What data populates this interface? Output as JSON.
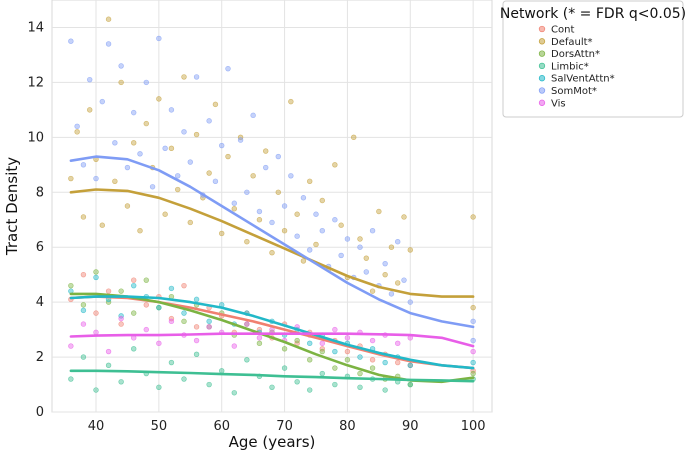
{
  "chart_data": {
    "type": "scatter",
    "xlabel": "Age (years)",
    "ylabel": "Tract Density",
    "xlim": [
      33,
      103
    ],
    "ylim": [
      0,
      15
    ],
    "xticks": [
      "40",
      "50",
      "60",
      "70",
      "80",
      "90",
      "100"
    ],
    "yticks": [
      "0",
      "2",
      "4",
      "6",
      "8",
      "10",
      "12",
      "14"
    ],
    "grid": true,
    "legend": {
      "title": "Network (* = FDR q<0.05)",
      "placement": "outside-right-top"
    },
    "series": [
      {
        "name": "Cont",
        "color": "#f08070",
        "fit_x": [
          36,
          40,
          45,
          50,
          55,
          60,
          65,
          70,
          75,
          80,
          85,
          90,
          95,
          100
        ],
        "fit_y": [
          4.15,
          4.2,
          4.15,
          4.0,
          3.8,
          3.55,
          3.3,
          3.0,
          2.7,
          2.4,
          2.1,
          1.85,
          1.7,
          1.6
        ],
        "points_x": [
          36,
          38,
          40,
          42,
          44,
          46,
          48,
          50,
          52,
          54,
          56,
          58,
          60,
          62,
          64,
          66,
          68,
          70,
          72,
          74,
          76,
          78,
          80,
          82,
          84,
          86,
          88,
          90,
          100
        ],
        "points_y": [
          4.1,
          5.0,
          3.6,
          4.4,
          3.2,
          4.8,
          3.9,
          4.2,
          3.4,
          4.6,
          3.1,
          3.8,
          3.5,
          2.9,
          3.6,
          3.0,
          2.7,
          3.2,
          2.5,
          2.9,
          2.3,
          2.6,
          2.2,
          2.4,
          1.9,
          2.1,
          1.8,
          1.7,
          1.5
        ]
      },
      {
        "name": "Default*",
        "color": "#c4a03a",
        "fit_x": [
          36,
          40,
          45,
          50,
          55,
          60,
          65,
          70,
          75,
          80,
          85,
          90,
          95,
          100
        ],
        "fit_y": [
          8.0,
          8.1,
          8.05,
          7.8,
          7.4,
          6.95,
          6.45,
          5.95,
          5.45,
          4.95,
          4.55,
          4.3,
          4.2,
          4.2
        ],
        "points_x": [
          36,
          37,
          38,
          39,
          40,
          41,
          42,
          43,
          44,
          45,
          46,
          47,
          48,
          49,
          50,
          51,
          52,
          53,
          54,
          55,
          56,
          57,
          58,
          59,
          60,
          61,
          62,
          63,
          64,
          65,
          66,
          67,
          68,
          69,
          70,
          71,
          72,
          73,
          74,
          75,
          76,
          77,
          78,
          79,
          80,
          81,
          82,
          83,
          84,
          85,
          86,
          87,
          88,
          89,
          90,
          100,
          100
        ],
        "points_y": [
          8.5,
          10.2,
          7.1,
          11.0,
          9.2,
          6.8,
          14.3,
          8.4,
          12.0,
          7.5,
          9.8,
          6.6,
          10.5,
          8.9,
          11.4,
          7.2,
          9.6,
          8.1,
          12.2,
          6.9,
          10.1,
          7.8,
          8.7,
          11.2,
          6.5,
          9.3,
          7.4,
          10.0,
          6.2,
          8.6,
          7.0,
          9.5,
          5.8,
          8.0,
          6.6,
          11.3,
          7.2,
          5.5,
          8.4,
          6.1,
          7.7,
          5.2,
          9.0,
          6.8,
          4.9,
          10.0,
          6.3,
          5.6,
          4.4,
          7.3,
          5.0,
          6.0,
          4.7,
          7.1,
          5.9,
          7.1,
          3.8
        ]
      },
      {
        "name": "DorsAttn*",
        "color": "#7cb342",
        "fit_x": [
          36,
          40,
          45,
          50,
          55,
          60,
          65,
          70,
          75,
          80,
          85,
          90,
          95,
          100
        ],
        "fit_y": [
          4.3,
          4.3,
          4.2,
          4.0,
          3.7,
          3.35,
          2.95,
          2.55,
          2.1,
          1.7,
          1.35,
          1.15,
          1.1,
          1.25
        ],
        "points_x": [
          36,
          38,
          40,
          42,
          44,
          46,
          48,
          50,
          52,
          54,
          56,
          58,
          60,
          62,
          64,
          66,
          68,
          70,
          72,
          74,
          76,
          78,
          80,
          82,
          84,
          86,
          88,
          90,
          100
        ],
        "points_y": [
          4.6,
          3.9,
          5.1,
          4.0,
          4.4,
          3.6,
          4.8,
          3.8,
          4.2,
          3.3,
          3.9,
          3.1,
          3.6,
          2.8,
          3.2,
          2.5,
          2.9,
          2.3,
          2.6,
          1.9,
          2.2,
          1.6,
          1.9,
          1.4,
          1.6,
          1.2,
          1.3,
          1.0,
          1.4
        ]
      },
      {
        "name": "Limbic*",
        "color": "#3ebf93",
        "fit_x": [
          36,
          40,
          45,
          50,
          55,
          60,
          65,
          70,
          75,
          80,
          85,
          90,
          95,
          100
        ],
        "fit_y": [
          1.5,
          1.5,
          1.48,
          1.45,
          1.42,
          1.38,
          1.35,
          1.3,
          1.27,
          1.23,
          1.2,
          1.17,
          1.15,
          1.12
        ],
        "points_x": [
          36,
          38,
          40,
          42,
          44,
          46,
          48,
          50,
          52,
          54,
          56,
          58,
          60,
          62,
          64,
          66,
          68,
          70,
          72,
          74,
          76,
          78,
          80,
          82,
          84,
          86,
          88,
          90,
          100
        ],
        "points_y": [
          1.2,
          2.0,
          0.8,
          1.7,
          1.1,
          2.3,
          1.4,
          0.9,
          1.8,
          1.2,
          2.1,
          1.0,
          1.5,
          0.7,
          1.9,
          1.3,
          0.9,
          1.6,
          1.1,
          0.8,
          1.4,
          1.0,
          1.3,
          0.9,
          1.2,
          0.8,
          1.1,
          1.0,
          1.2
        ]
      },
      {
        "name": "SalVentAttn*",
        "color": "#22b8c8",
        "fit_x": [
          36,
          40,
          45,
          50,
          55,
          60,
          65,
          70,
          75,
          80,
          85,
          90,
          95,
          100
        ],
        "fit_y": [
          4.15,
          4.2,
          4.2,
          4.15,
          4.0,
          3.8,
          3.5,
          3.15,
          2.8,
          2.45,
          2.15,
          1.9,
          1.7,
          1.6
        ],
        "points_x": [
          36,
          38,
          40,
          42,
          44,
          46,
          48,
          50,
          52,
          54,
          56,
          58,
          60,
          62,
          64,
          66,
          68,
          70,
          72,
          74,
          76,
          78,
          80,
          82,
          84,
          86,
          88,
          90,
          100
        ],
        "points_y": [
          4.4,
          3.7,
          4.9,
          4.1,
          3.5,
          4.6,
          4.2,
          3.8,
          4.5,
          3.6,
          4.1,
          3.3,
          3.9,
          3.2,
          3.6,
          2.9,
          3.3,
          2.8,
          3.0,
          2.5,
          2.8,
          2.2,
          2.5,
          2.0,
          2.3,
          1.8,
          2.0,
          1.7,
          1.8
        ]
      },
      {
        "name": "SomMot*",
        "color": "#7f9cf5",
        "fit_x": [
          36,
          40,
          45,
          50,
          55,
          60,
          65,
          70,
          75,
          80,
          85,
          90,
          95,
          100
        ],
        "fit_y": [
          9.15,
          9.3,
          9.2,
          8.8,
          8.2,
          7.5,
          6.8,
          6.1,
          5.4,
          4.7,
          4.1,
          3.6,
          3.3,
          3.1
        ],
        "points_x": [
          36,
          37,
          38,
          39,
          40,
          41,
          42,
          43,
          44,
          45,
          46,
          47,
          48,
          49,
          50,
          51,
          52,
          53,
          54,
          55,
          56,
          57,
          58,
          59,
          60,
          61,
          62,
          63,
          64,
          65,
          66,
          67,
          68,
          69,
          70,
          71,
          72,
          73,
          74,
          75,
          76,
          77,
          78,
          79,
          80,
          81,
          82,
          83,
          84,
          85,
          86,
          87,
          88,
          89,
          90,
          100,
          100
        ],
        "points_y": [
          13.5,
          10.4,
          9.0,
          12.1,
          8.5,
          11.3,
          13.4,
          9.8,
          12.6,
          8.9,
          10.9,
          9.4,
          12.0,
          8.2,
          13.6,
          9.6,
          11.0,
          8.6,
          10.2,
          9.1,
          12.2,
          7.9,
          10.6,
          8.4,
          9.7,
          12.5,
          7.6,
          9.9,
          8.0,
          10.8,
          7.3,
          8.9,
          6.9,
          9.3,
          7.5,
          8.6,
          6.4,
          7.8,
          5.9,
          7.2,
          6.6,
          5.3,
          7.0,
          5.7,
          6.3,
          4.9,
          6.0,
          5.1,
          6.6,
          4.6,
          5.4,
          4.3,
          6.2,
          4.8,
          4.0,
          3.3,
          2.6
        ]
      },
      {
        "name": "Vis",
        "color": "#e85ee8",
        "fit_x": [
          36,
          40,
          45,
          50,
          55,
          60,
          65,
          70,
          75,
          80,
          85,
          90,
          95,
          100
        ],
        "fit_y": [
          2.75,
          2.78,
          2.8,
          2.8,
          2.82,
          2.85,
          2.85,
          2.85,
          2.85,
          2.85,
          2.83,
          2.8,
          2.7,
          2.4
        ],
        "points_x": [
          36,
          38,
          40,
          42,
          44,
          46,
          48,
          50,
          52,
          54,
          56,
          58,
          60,
          62,
          64,
          66,
          68,
          70,
          72,
          74,
          76,
          78,
          80,
          82,
          84,
          86,
          88,
          90,
          100
        ],
        "points_y": [
          2.4,
          3.2,
          2.9,
          2.2,
          3.4,
          2.7,
          3.0,
          2.5,
          3.3,
          2.8,
          2.6,
          3.1,
          2.9,
          2.4,
          3.2,
          2.7,
          3.0,
          2.6,
          3.1,
          2.8,
          2.5,
          3.0,
          2.7,
          2.9,
          2.6,
          2.8,
          2.5,
          2.7,
          2.2
        ]
      }
    ]
  }
}
